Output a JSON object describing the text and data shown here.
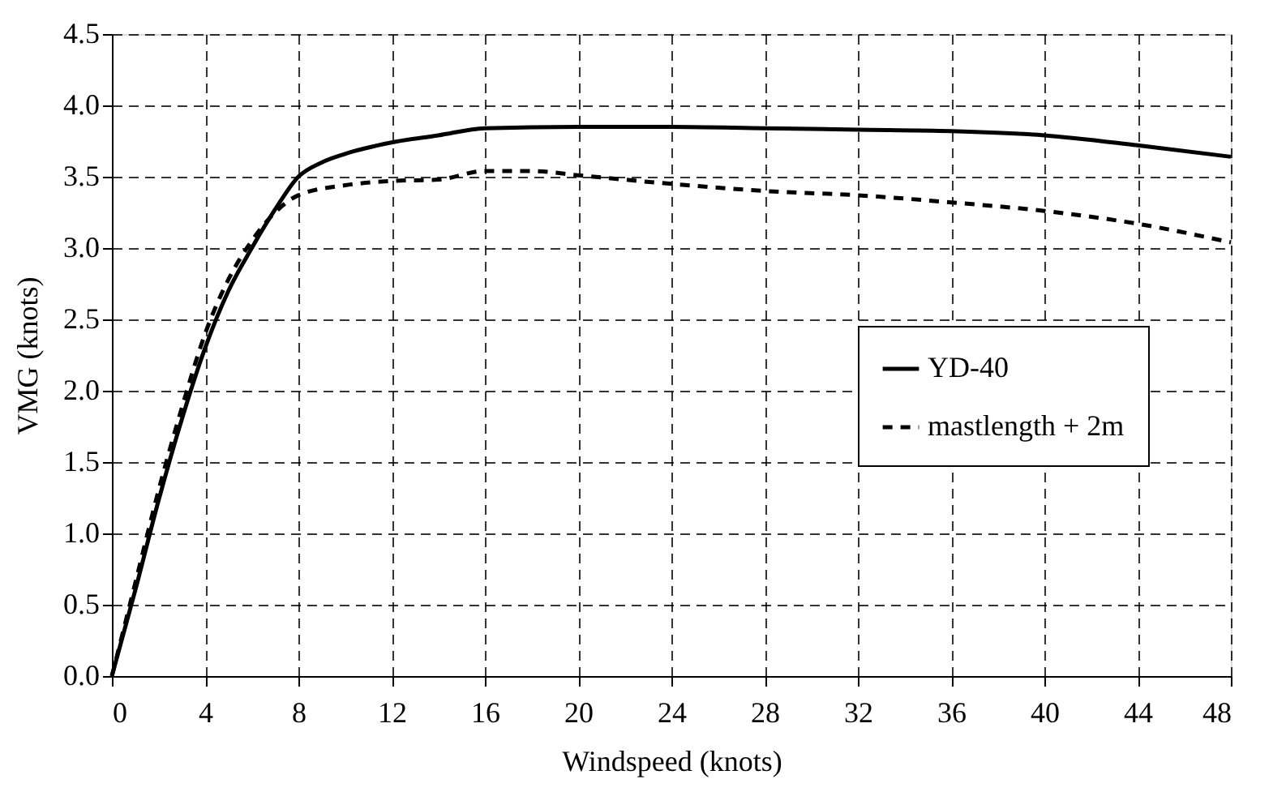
{
  "chart_data": {
    "type": "line",
    "xlabel": "Windspeed (knots)",
    "ylabel": "VMG  (knots)",
    "xlim": [
      0,
      48
    ],
    "xticks": [
      0,
      4,
      8,
      12,
      16,
      20,
      24,
      28,
      32,
      36,
      40,
      44,
      48
    ],
    "ylim": [
      0,
      4.5
    ],
    "yticks": [
      {
        "value": 0,
        "label": "0.0"
      },
      {
        "value": 0.5,
        "label": "0.5"
      },
      {
        "value": 1,
        "label": "1.0"
      },
      {
        "value": 1.5,
        "label": "1.5"
      },
      {
        "value": 2,
        "label": "2.0"
      },
      {
        "value": 2.5,
        "label": "2.5"
      },
      {
        "value": 3,
        "label": "3.0"
      },
      {
        "value": 3.5,
        "label": "3.5"
      },
      {
        "value": 4,
        "label": "4.0"
      },
      {
        "value": 4.5,
        "label": "4.5"
      }
    ],
    "grid": true,
    "legend": "right",
    "marker": "none",
    "series": [
      {
        "name": "YD-40",
        "color": "#000000",
        "line_style": "solid",
        "x": [
          0,
          1,
          2,
          3,
          4,
          5,
          6,
          7,
          8,
          9,
          10,
          12,
          14,
          16,
          20,
          24,
          28,
          32,
          36,
          40,
          44,
          48
        ],
        "values": [
          0,
          0.6,
          1.23,
          1.8,
          2.3,
          2.7,
          3.0,
          3.27,
          3.5,
          3.6,
          3.66,
          3.74,
          3.79,
          3.84,
          3.85,
          3.85,
          3.84,
          3.83,
          3.82,
          3.79,
          3.72,
          3.64
        ]
      },
      {
        "name": "mastlength + 2m",
        "color": "#000000",
        "line_style": "dashed",
        "x": [
          0,
          1,
          2,
          3,
          4,
          5,
          6,
          7,
          8,
          10,
          12,
          14,
          16,
          18,
          20,
          24,
          28,
          32,
          36,
          40,
          44,
          48
        ],
        "values": [
          0,
          0.65,
          1.3,
          1.88,
          2.4,
          2.78,
          3.05,
          3.25,
          3.37,
          3.44,
          3.47,
          3.48,
          3.54,
          3.54,
          3.51,
          3.45,
          3.4,
          3.37,
          3.32,
          3.26,
          3.17,
          3.04
        ]
      }
    ]
  }
}
